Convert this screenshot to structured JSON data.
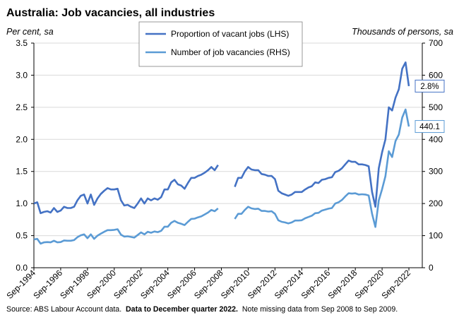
{
  "chart_data": {
    "type": "line",
    "title": "Australia: Job vacancies, all industries",
    "ylabel_left": "Per cent, sa",
    "ylabel_right": "Thousands of persons, sa",
    "ylim_left": [
      0,
      3.5
    ],
    "ylim_right": [
      0,
      700
    ],
    "yticks_left": [
      "0.0",
      "0.5",
      "1.0",
      "1.5",
      "2.0",
      "2.5",
      "3.0",
      "3.5"
    ],
    "yticks_right": [
      "0",
      "100",
      "200",
      "300",
      "400",
      "500",
      "600",
      "700"
    ],
    "x_start": "1994.75",
    "x_end": "2023.75",
    "xticks": [
      {
        "label": "Sep-1994",
        "x": 1994.75
      },
      {
        "label": "Sep-1996",
        "x": 1996.75
      },
      {
        "label": "Sep-1998",
        "x": 1998.75
      },
      {
        "label": "Sep-2000",
        "x": 2000.75
      },
      {
        "label": "Sep-2002",
        "x": 2002.75
      },
      {
        "label": "Sep-2004",
        "x": 2004.75
      },
      {
        "label": "Sep-2006",
        "x": 2006.75
      },
      {
        "label": "Sep-2008",
        "x": 2008.75
      },
      {
        "label": "Sep-2010",
        "x": 2010.75
      },
      {
        "label": "Sep-2012",
        "x": 2012.75
      },
      {
        "label": "Sep-2014",
        "x": 2014.75
      },
      {
        "label": "Sep-2016",
        "x": 2016.75
      },
      {
        "label": "Sep-2018",
        "x": 2018.75
      },
      {
        "label": "Sep-2020",
        "x": 2020.75
      },
      {
        "label": "Sep-2022",
        "x": 2022.75
      }
    ],
    "grid": "horizontal",
    "legend_position": "top-center",
    "series": [
      {
        "name": "Proportion of vacant jobs (LHS)",
        "axis": "left",
        "color": "#4472C4",
        "segments": [
          [
            [
              1994.75,
              1.0
            ],
            [
              1995.0,
              1.02
            ],
            [
              1995.25,
              0.85
            ],
            [
              1995.5,
              0.87
            ],
            [
              1995.75,
              0.88
            ],
            [
              1996.0,
              0.86
            ],
            [
              1996.25,
              0.93
            ],
            [
              1996.5,
              0.87
            ],
            [
              1996.75,
              0.89
            ],
            [
              1997.0,
              0.95
            ],
            [
              1997.25,
              0.93
            ],
            [
              1997.5,
              0.93
            ],
            [
              1997.75,
              0.95
            ],
            [
              1998.0,
              1.05
            ],
            [
              1998.25,
              1.12
            ],
            [
              1998.5,
              1.14
            ],
            [
              1998.75,
              1.0
            ],
            [
              1999.0,
              1.14
            ],
            [
              1999.25,
              0.98
            ],
            [
              1999.5,
              1.08
            ],
            [
              1999.75,
              1.15
            ],
            [
              2000.0,
              1.2
            ],
            [
              2000.25,
              1.24
            ],
            [
              2000.5,
              1.22
            ],
            [
              2000.75,
              1.22
            ],
            [
              2001.0,
              1.23
            ],
            [
              2001.25,
              1.05
            ],
            [
              2001.5,
              0.97
            ],
            [
              2001.75,
              0.98
            ],
            [
              2002.0,
              0.95
            ],
            [
              2002.25,
              0.93
            ],
            [
              2002.5,
              1.0
            ],
            [
              2002.75,
              1.08
            ],
            [
              2003.0,
              1.0
            ],
            [
              2003.25,
              1.08
            ],
            [
              2003.5,
              1.05
            ],
            [
              2003.75,
              1.08
            ],
            [
              2004.0,
              1.06
            ],
            [
              2004.25,
              1.1
            ],
            [
              2004.5,
              1.22
            ],
            [
              2004.75,
              1.22
            ],
            [
              2005.0,
              1.33
            ],
            [
              2005.25,
              1.37
            ],
            [
              2005.5,
              1.3
            ],
            [
              2005.75,
              1.28
            ],
            [
              2006.0,
              1.23
            ],
            [
              2006.25,
              1.32
            ],
            [
              2006.5,
              1.4
            ],
            [
              2006.75,
              1.4
            ],
            [
              2007.0,
              1.43
            ],
            [
              2007.25,
              1.45
            ],
            [
              2007.5,
              1.48
            ],
            [
              2007.75,
              1.52
            ],
            [
              2008.0,
              1.57
            ],
            [
              2008.25,
              1.52
            ],
            [
              2008.5,
              1.6
            ]
          ],
          [
            [
              2009.75,
              1.26
            ],
            [
              2010.0,
              1.4
            ],
            [
              2010.25,
              1.4
            ],
            [
              2010.5,
              1.5
            ],
            [
              2010.75,
              1.57
            ],
            [
              2011.0,
              1.53
            ],
            [
              2011.25,
              1.52
            ],
            [
              2011.5,
              1.52
            ],
            [
              2011.75,
              1.46
            ],
            [
              2012.0,
              1.45
            ],
            [
              2012.25,
              1.43
            ],
            [
              2012.5,
              1.43
            ],
            [
              2012.75,
              1.38
            ],
            [
              2013.0,
              1.2
            ],
            [
              2013.25,
              1.16
            ],
            [
              2013.5,
              1.14
            ],
            [
              2013.75,
              1.12
            ],
            [
              2014.0,
              1.14
            ],
            [
              2014.25,
              1.18
            ],
            [
              2014.5,
              1.18
            ],
            [
              2014.75,
              1.18
            ],
            [
              2015.0,
              1.22
            ],
            [
              2015.25,
              1.25
            ],
            [
              2015.5,
              1.27
            ],
            [
              2015.75,
              1.33
            ],
            [
              2016.0,
              1.32
            ],
            [
              2016.25,
              1.37
            ],
            [
              2016.5,
              1.38
            ],
            [
              2016.75,
              1.4
            ],
            [
              2017.0,
              1.41
            ],
            [
              2017.25,
              1.49
            ],
            [
              2017.5,
              1.51
            ],
            [
              2017.75,
              1.55
            ],
            [
              2018.0,
              1.61
            ],
            [
              2018.25,
              1.67
            ],
            [
              2018.5,
              1.65
            ],
            [
              2018.75,
              1.65
            ],
            [
              2019.0,
              1.61
            ],
            [
              2019.25,
              1.61
            ],
            [
              2019.5,
              1.6
            ],
            [
              2019.75,
              1.58
            ],
            [
              2020.0,
              1.18
            ],
            [
              2020.25,
              0.95
            ],
            [
              2020.5,
              1.55
            ],
            [
              2020.75,
              1.8
            ],
            [
              2021.0,
              2.0
            ],
            [
              2021.25,
              2.5
            ],
            [
              2021.5,
              2.45
            ],
            [
              2021.75,
              2.65
            ],
            [
              2022.0,
              2.78
            ],
            [
              2022.25,
              3.1
            ],
            [
              2022.5,
              3.2
            ],
            [
              2022.75,
              2.83
            ]
          ]
        ]
      },
      {
        "name": "Number of job vacancies (RHS)",
        "axis": "right",
        "color": "#5B9BD5",
        "segments": [
          [
            [
              1994.75,
              88
            ],
            [
              1995.0,
              90
            ],
            [
              1995.25,
              75
            ],
            [
              1995.5,
              79
            ],
            [
              1995.75,
              80
            ],
            [
              1996.0,
              79
            ],
            [
              1996.25,
              84
            ],
            [
              1996.5,
              79
            ],
            [
              1996.75,
              80
            ],
            [
              1997.0,
              85
            ],
            [
              1997.25,
              84
            ],
            [
              1997.5,
              84
            ],
            [
              1997.75,
              86
            ],
            [
              1998.0,
              95
            ],
            [
              1998.25,
              101
            ],
            [
              1998.5,
              104
            ],
            [
              1998.75,
              92
            ],
            [
              1999.0,
              104
            ],
            [
              1999.25,
              90
            ],
            [
              1999.5,
              100
            ],
            [
              1999.75,
              106
            ],
            [
              2000.0,
              112
            ],
            [
              2000.25,
              117
            ],
            [
              2000.5,
              117
            ],
            [
              2000.75,
              118
            ],
            [
              2001.0,
              120
            ],
            [
              2001.25,
              103
            ],
            [
              2001.5,
              97
            ],
            [
              2001.75,
              98
            ],
            [
              2002.0,
              96
            ],
            [
              2002.25,
              94
            ],
            [
              2002.5,
              102
            ],
            [
              2002.75,
              110
            ],
            [
              2003.0,
              104
            ],
            [
              2003.25,
              112
            ],
            [
              2003.5,
              109
            ],
            [
              2003.75,
              113
            ],
            [
              2004.0,
              111
            ],
            [
              2004.25,
              115
            ],
            [
              2004.5,
              128
            ],
            [
              2004.75,
              128
            ],
            [
              2005.0,
              140
            ],
            [
              2005.25,
              146
            ],
            [
              2005.5,
              140
            ],
            [
              2005.75,
              137
            ],
            [
              2006.0,
              133
            ],
            [
              2006.25,
              143
            ],
            [
              2006.5,
              152
            ],
            [
              2006.75,
              153
            ],
            [
              2007.0,
              157
            ],
            [
              2007.25,
              160
            ],
            [
              2007.5,
              166
            ],
            [
              2007.75,
              172
            ],
            [
              2008.0,
              180
            ],
            [
              2008.25,
              176
            ],
            [
              2008.5,
              185
            ]
          ],
          [
            [
              2009.75,
              152
            ],
            [
              2010.0,
              168
            ],
            [
              2010.25,
              168
            ],
            [
              2010.5,
              180
            ],
            [
              2010.75,
              190
            ],
            [
              2011.0,
              185
            ],
            [
              2011.25,
              183
            ],
            [
              2011.5,
              184
            ],
            [
              2011.75,
              177
            ],
            [
              2012.0,
              177
            ],
            [
              2012.25,
              175
            ],
            [
              2012.5,
              176
            ],
            [
              2012.75,
              168
            ],
            [
              2013.0,
              148
            ],
            [
              2013.25,
              143
            ],
            [
              2013.5,
              141
            ],
            [
              2013.75,
              138
            ],
            [
              2014.0,
              141
            ],
            [
              2014.25,
              147
            ],
            [
              2014.5,
              147
            ],
            [
              2014.75,
              148
            ],
            [
              2015.0,
              154
            ],
            [
              2015.25,
              158
            ],
            [
              2015.5,
              162
            ],
            [
              2015.75,
              170
            ],
            [
              2016.0,
              171
            ],
            [
              2016.25,
              178
            ],
            [
              2016.5,
              181
            ],
            [
              2016.75,
              184
            ],
            [
              2017.0,
              186
            ],
            [
              2017.25,
              200
            ],
            [
              2017.5,
              204
            ],
            [
              2017.75,
              211
            ],
            [
              2018.0,
              222
            ],
            [
              2018.25,
              232
            ],
            [
              2018.5,
              231
            ],
            [
              2018.75,
              232
            ],
            [
              2019.0,
              228
            ],
            [
              2019.25,
              229
            ],
            [
              2019.5,
              228
            ],
            [
              2019.75,
              225
            ],
            [
              2020.0,
              168
            ],
            [
              2020.25,
              127
            ],
            [
              2020.5,
              210
            ],
            [
              2020.75,
              245
            ],
            [
              2021.0,
              285
            ],
            [
              2021.25,
              363
            ],
            [
              2021.5,
              345
            ],
            [
              2021.75,
              395
            ],
            [
              2022.0,
              415
            ],
            [
              2022.25,
              468
            ],
            [
              2022.5,
              493
            ],
            [
              2022.75,
              440
            ]
          ]
        ]
      }
    ],
    "annotations": [
      {
        "text": "2.8%",
        "series": 0,
        "x": 2022.75,
        "y": 2.83
      },
      {
        "text": "440.1",
        "series": 1,
        "x": 2022.75,
        "y": 440.1
      }
    ]
  },
  "source": {
    "prefix": "Source: ABS Labour Account data.",
    "bold": "Data to December quarter 2022.",
    "suffix": "Note missing data from Sep 2008 to Sep 2009."
  }
}
